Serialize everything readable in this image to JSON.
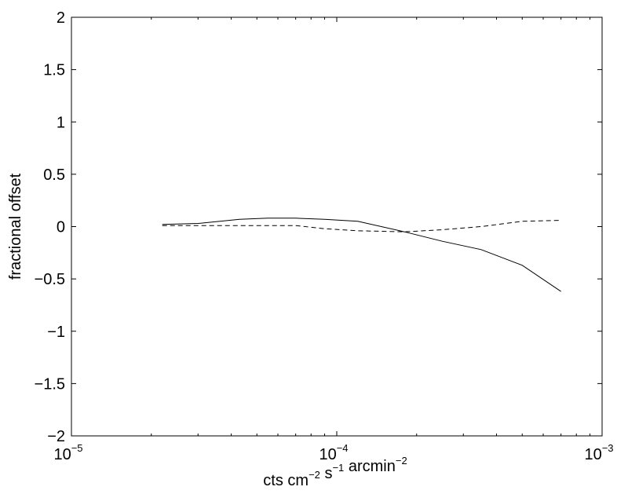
{
  "chart_data": {
    "type": "line",
    "title": "",
    "xlabel": {
      "parts": [
        {
          "text": "cts cm",
          "sup": "−2"
        },
        {
          "text": " s",
          "sup": "−1"
        },
        {
          "text": " arcmin",
          "sup": "−2"
        }
      ]
    },
    "ylabel": "fractional offset",
    "x_scale": "log",
    "xlim": [
      1e-05,
      0.001
    ],
    "ylim": [
      -2,
      2
    ],
    "grid": false,
    "legend": false,
    "x_ticks": [
      {
        "value": 1e-05,
        "base": "10",
        "exp": "−5"
      },
      {
        "value": 0.0001,
        "base": "10",
        "exp": "−4"
      },
      {
        "value": 0.001,
        "base": "10",
        "exp": "−3"
      }
    ],
    "y_ticks": [
      {
        "value": -2,
        "label": "−2"
      },
      {
        "value": -1.5,
        "label": "−1.5"
      },
      {
        "value": -1,
        "label": "−1"
      },
      {
        "value": -0.5,
        "label": "−0.5"
      },
      {
        "value": 0,
        "label": "0"
      },
      {
        "value": 0.5,
        "label": "0.5"
      },
      {
        "value": 1,
        "label": "1"
      },
      {
        "value": 1.5,
        "label": "1.5"
      },
      {
        "value": 2,
        "label": "2"
      }
    ],
    "series": [
      {
        "style": "solid",
        "color": "#000000",
        "x": [
          2.2e-05,
          3e-05,
          4.3e-05,
          5.5e-05,
          7e-05,
          9e-05,
          0.00012,
          0.00018,
          0.00025,
          0.00035,
          0.0005,
          0.0007
        ],
        "y": [
          0.02,
          0.03,
          0.07,
          0.08,
          0.08,
          0.07,
          0.05,
          -0.05,
          -0.14,
          -0.22,
          -0.37,
          -0.62
        ]
      },
      {
        "style": "dashed",
        "color": "#000000",
        "x": [
          2.2e-05,
          3e-05,
          4.3e-05,
          5.5e-05,
          7e-05,
          9e-05,
          0.00012,
          0.00018,
          0.00025,
          0.00035,
          0.0005,
          0.0007
        ],
        "y": [
          0.01,
          0.01,
          0.01,
          0.01,
          0.01,
          -0.02,
          -0.04,
          -0.05,
          -0.03,
          0.0,
          0.05,
          0.06
        ]
      }
    ]
  }
}
